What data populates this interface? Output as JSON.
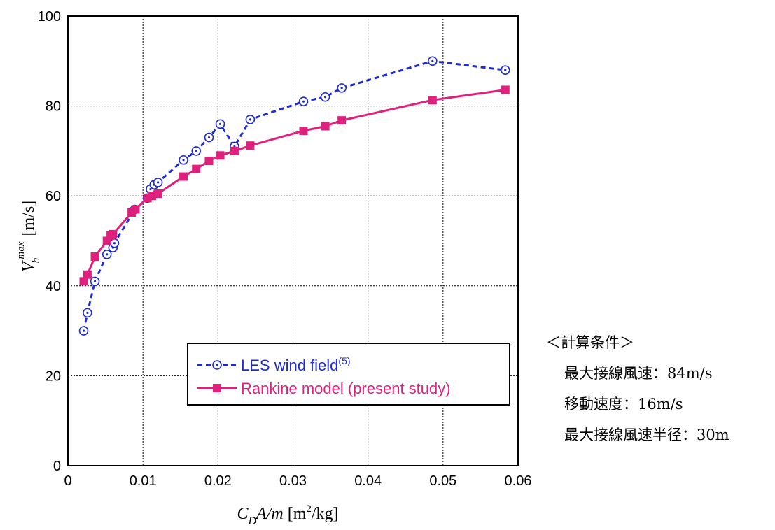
{
  "chart_data": {
    "type": "line",
    "xlim": [
      0,
      0.06
    ],
    "ylim": [
      0,
      100
    ],
    "x_ticks": [
      "0",
      "0.01",
      "0.02",
      "0.03",
      "0.04",
      "0.05",
      "0.06"
    ],
    "y_ticks": [
      "0",
      "20",
      "40",
      "60",
      "80",
      "100"
    ],
    "xlabel": "C_D A/m [m²/kg]",
    "xlabel_parts": {
      "c": "C",
      "d": "D",
      "am": "A/m",
      "unit_a": " [m",
      "unit_sup": "2",
      "unit_b": "/kg]"
    },
    "ylabel": "V_h^max [m/s]",
    "ylabel_parts": {
      "v": "V",
      "h": "h",
      "max": "max",
      "unit": "[m/s]"
    },
    "grid": true,
    "legend_position": "lower-right",
    "series": [
      {
        "name": "LES wind field",
        "name_sup": "(5)",
        "color": "#1f2bd0",
        "line_style": "dashed",
        "marker": "open-circle",
        "points": [
          [
            0.0021,
            30
          ],
          [
            0.0026,
            34
          ],
          [
            0.0036,
            41
          ],
          [
            0.0052,
            47
          ],
          [
            0.006,
            48.5
          ],
          [
            0.0062,
            49.5
          ],
          [
            0.0089,
            57
          ],
          [
            0.0106,
            59.5
          ],
          [
            0.011,
            61.5
          ],
          [
            0.0115,
            62.5
          ],
          [
            0.012,
            63
          ],
          [
            0.0154,
            68
          ],
          [
            0.0171,
            70
          ],
          [
            0.0188,
            73
          ],
          [
            0.0203,
            76
          ],
          [
            0.0222,
            71
          ],
          [
            0.0243,
            77
          ],
          [
            0.0314,
            81
          ],
          [
            0.0343,
            82
          ],
          [
            0.0365,
            84
          ],
          [
            0.0486,
            90
          ],
          [
            0.0583,
            88
          ]
        ]
      },
      {
        "name": "Rankine model (present study)",
        "color": "#e0207d",
        "line_style": "solid",
        "marker": "filled-square",
        "points": [
          [
            0.0021,
            41
          ],
          [
            0.0026,
            42.5
          ],
          [
            0.0036,
            46.5
          ],
          [
            0.0052,
            50
          ],
          [
            0.0057,
            51.2
          ],
          [
            0.006,
            51.5
          ],
          [
            0.0085,
            56.3
          ],
          [
            0.009,
            57
          ],
          [
            0.0106,
            59.5
          ],
          [
            0.0112,
            60
          ],
          [
            0.012,
            60.5
          ],
          [
            0.0154,
            64.3
          ],
          [
            0.0171,
            66
          ],
          [
            0.0188,
            67.8
          ],
          [
            0.0203,
            69
          ],
          [
            0.0222,
            70
          ],
          [
            0.0243,
            71.2
          ],
          [
            0.0314,
            74.5
          ],
          [
            0.0343,
            75.5
          ],
          [
            0.0365,
            76.8
          ],
          [
            0.0486,
            81.3
          ],
          [
            0.0583,
            83.6
          ]
        ]
      }
    ]
  },
  "conditions": {
    "heading": "＜計算条件＞",
    "items": [
      "最大接線風速：84m/s",
      "移動速度：16m/s",
      "最大接線風速半径：30m"
    ]
  }
}
